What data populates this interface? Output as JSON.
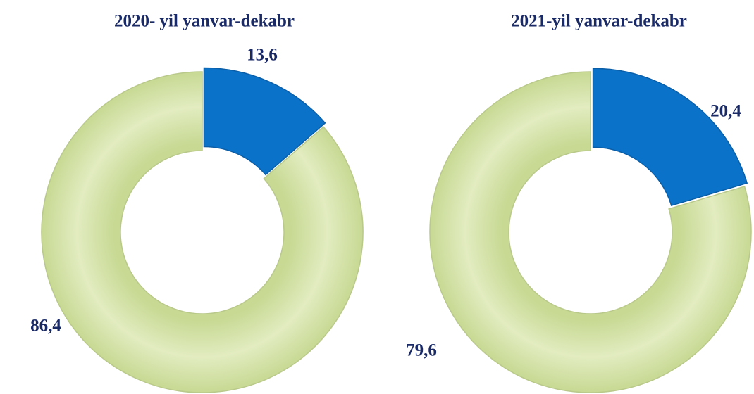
{
  "chart_data": [
    {
      "type": "donut",
      "title": "2020- yil yanvar-dekabr",
      "values": [
        13.6,
        86.4
      ],
      "value_labels": [
        "13,6",
        "86,4"
      ],
      "colors": [
        "#0a73c9",
        "#d5e3a6"
      ]
    },
    {
      "type": "donut",
      "title": "2021-yil yanvar-dekabr",
      "values": [
        20.4,
        79.6
      ],
      "value_labels": [
        "20,4",
        "79,6"
      ],
      "colors": [
        "#0a73c9",
        "#d5e3a6"
      ]
    }
  ]
}
